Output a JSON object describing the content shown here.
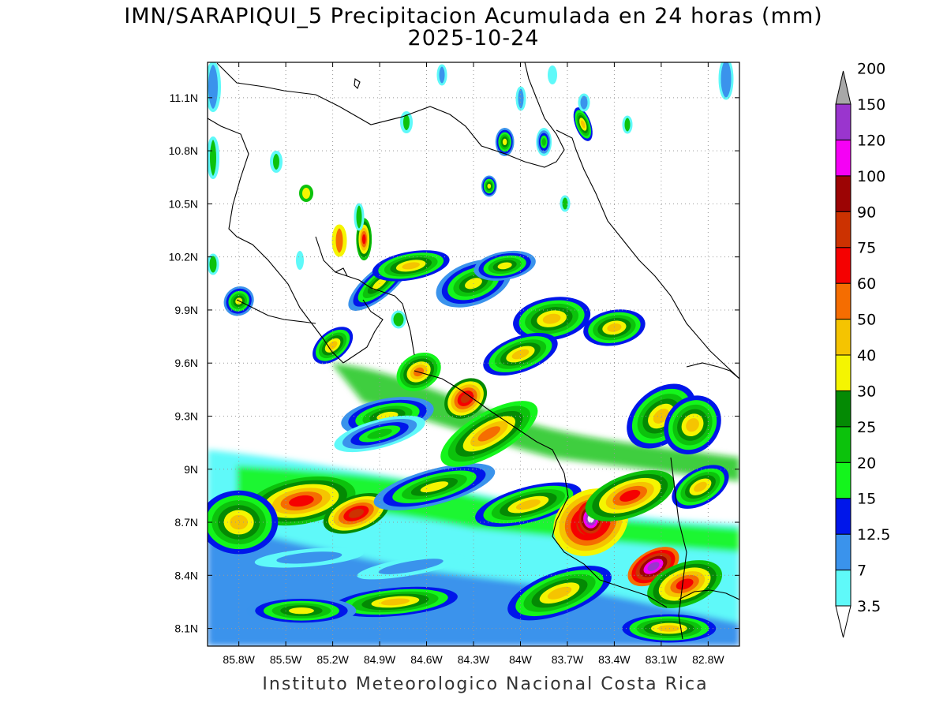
{
  "title_line1": "IMN/SARAPIQUI_5 Precipitacion Acumulada en 24 horas (mm)",
  "title_line2": "2025-10-24",
  "footer": "Instituto Meteorologico Nacional Costa Rica",
  "map": {
    "lon_range": [
      -86.0,
      -82.6
    ],
    "lat_range": [
      8.0,
      11.3
    ],
    "lon_ticks": [
      {
        "value": -85.8,
        "label": "85.8W"
      },
      {
        "value": -85.5,
        "label": "85.5W"
      },
      {
        "value": -85.2,
        "label": "85.2W"
      },
      {
        "value": -84.9,
        "label": "84.9W"
      },
      {
        "value": -84.6,
        "label": "84.6W"
      },
      {
        "value": -84.3,
        "label": "84.3W"
      },
      {
        "value": -84.0,
        "label": "84W"
      },
      {
        "value": -83.7,
        "label": "83.7W"
      },
      {
        "value": -83.4,
        "label": "83.4W"
      },
      {
        "value": -83.1,
        "label": "83.1W"
      },
      {
        "value": -82.8,
        "label": "82.8W"
      }
    ],
    "lat_ticks": [
      {
        "value": 11.1,
        "label": "11.1N"
      },
      {
        "value": 10.8,
        "label": "10.8N"
      },
      {
        "value": 10.5,
        "label": "10.5N"
      },
      {
        "value": 10.2,
        "label": "10.2N"
      },
      {
        "value": 9.9,
        "label": "9.9N"
      },
      {
        "value": 9.6,
        "label": "9.6N"
      },
      {
        "value": 9.3,
        "label": "9.3N"
      },
      {
        "value": 9.0,
        "label": "9N"
      },
      {
        "value": 8.7,
        "label": "8.7N"
      },
      {
        "value": 8.4,
        "label": "8.4N"
      },
      {
        "value": 8.1,
        "label": "8.1N"
      }
    ],
    "grid": "dotted"
  },
  "colorbar": {
    "labels": [
      "3.5",
      "7",
      "12.5",
      "15",
      "20",
      "25",
      "30",
      "40",
      "50",
      "60",
      "75",
      "90",
      "100",
      "120",
      "150",
      "200"
    ],
    "colors": [
      "#5ff9f9",
      "#3a93ec",
      "#0016ea",
      "#14f51c",
      "#0cc20c",
      "#048a04",
      "#f5f501",
      "#f5c401",
      "#f56d01",
      "#f50101",
      "#cc3201",
      "#9c0404",
      "#f501f5",
      "#9a35ce",
      "#f4f4f4",
      "#a8a8a8"
    ]
  },
  "precip_cells": [
    {
      "lon": -85.4,
      "lat": 8.82,
      "rx": 0.35,
      "ry": 0.13,
      "rot": -10,
      "mm": 60
    },
    {
      "lon": -85.05,
      "lat": 8.75,
      "rx": 0.22,
      "ry": 0.1,
      "rot": -20,
      "mm": 75
    },
    {
      "lon": -85.8,
      "lat": 8.7,
      "rx": 0.25,
      "ry": 0.18,
      "rot": 0,
      "mm": 40
    },
    {
      "lon": -84.55,
      "lat": 8.9,
      "rx": 0.4,
      "ry": 0.1,
      "rot": -15,
      "mm": 30
    },
    {
      "lon": -84.2,
      "lat": 9.2,
      "rx": 0.35,
      "ry": 0.12,
      "rot": -30,
      "mm": 50
    },
    {
      "lon": -84.35,
      "lat": 9.4,
      "rx": 0.15,
      "ry": 0.1,
      "rot": -40,
      "mm": 75
    },
    {
      "lon": -84.85,
      "lat": 9.3,
      "rx": 0.3,
      "ry": 0.1,
      "rot": -10,
      "mm": 30
    },
    {
      "lon": -83.95,
      "lat": 8.8,
      "rx": 0.35,
      "ry": 0.1,
      "rot": -15,
      "mm": 40
    },
    {
      "lon": -83.55,
      "lat": 8.7,
      "rx": 0.25,
      "ry": 0.18,
      "rot": -30,
      "mm": 90
    },
    {
      "lon": -83.55,
      "lat": 8.72,
      "rx": 0.09,
      "ry": 0.1,
      "rot": 0,
      "mm": 150
    },
    {
      "lon": -83.15,
      "lat": 8.45,
      "rx": 0.18,
      "ry": 0.09,
      "rot": -30,
      "mm": 120
    },
    {
      "lon": -82.95,
      "lat": 8.35,
      "rx": 0.25,
      "ry": 0.12,
      "rot": -20,
      "mm": 60
    },
    {
      "lon": -83.3,
      "lat": 8.85,
      "rx": 0.3,
      "ry": 0.12,
      "rot": -20,
      "mm": 60
    },
    {
      "lon": -82.85,
      "lat": 8.9,
      "rx": 0.2,
      "ry": 0.1,
      "rot": -30,
      "mm": 40
    },
    {
      "lon": -84.8,
      "lat": 8.25,
      "rx": 0.4,
      "ry": 0.08,
      "rot": -5,
      "mm": 40
    },
    {
      "lon": -85.4,
      "lat": 8.2,
      "rx": 0.35,
      "ry": 0.08,
      "rot": 0,
      "mm": 30
    },
    {
      "lon": -83.75,
      "lat": 8.3,
      "rx": 0.35,
      "ry": 0.12,
      "rot": -20,
      "mm": 40
    },
    {
      "lon": -83.05,
      "lat": 8.1,
      "rx": 0.3,
      "ry": 0.08,
      "rot": 0,
      "mm": 40
    },
    {
      "lon": -83.8,
      "lat": 9.85,
      "rx": 0.25,
      "ry": 0.12,
      "rot": -10,
      "mm": 40
    },
    {
      "lon": -83.4,
      "lat": 9.8,
      "rx": 0.2,
      "ry": 0.1,
      "rot": -10,
      "mm": 40
    },
    {
      "lon": -83.1,
      "lat": 9.3,
      "rx": 0.25,
      "ry": 0.15,
      "rot": -40,
      "mm": 40
    },
    {
      "lon": -82.9,
      "lat": 9.25,
      "rx": 0.2,
      "ry": 0.15,
      "rot": -50,
      "mm": 40
    },
    {
      "lon": -84.3,
      "lat": 10.05,
      "rx": 0.25,
      "ry": 0.12,
      "rot": -20,
      "mm": 30
    },
    {
      "lon": -84.1,
      "lat": 10.15,
      "rx": 0.2,
      "ry": 0.08,
      "rot": -10,
      "mm": 30
    },
    {
      "lon": -84.0,
      "lat": 9.65,
      "rx": 0.25,
      "ry": 0.1,
      "rot": -20,
      "mm": 40
    },
    {
      "lon": -84.9,
      "lat": 10.05,
      "rx": 0.25,
      "ry": 0.08,
      "rot": -40,
      "mm": 30
    },
    {
      "lon": -85.2,
      "lat": 9.7,
      "rx": 0.15,
      "ry": 0.08,
      "rot": -40,
      "mm": 40
    },
    {
      "lon": -85.8,
      "lat": 9.95,
      "rx": 0.1,
      "ry": 0.08,
      "rot": -40,
      "mm": 30
    },
    {
      "lon": -85.0,
      "lat": 10.3,
      "rx": 0.05,
      "ry": 0.12,
      "rot": 0,
      "mm": 60
    },
    {
      "lon": -84.7,
      "lat": 10.15,
      "rx": 0.25,
      "ry": 0.08,
      "rot": -10,
      "mm": 40
    },
    {
      "lon": -84.65,
      "lat": 9.55,
      "rx": 0.15,
      "ry": 0.1,
      "rot": -30,
      "mm": 50
    },
    {
      "lon": -83.6,
      "lat": 10.95,
      "rx": 0.05,
      "ry": 0.1,
      "rot": -20,
      "mm": 40
    },
    {
      "lon": -84.1,
      "lat": 10.85,
      "rx": 0.06,
      "ry": 0.08,
      "rot": 0,
      "mm": 30
    },
    {
      "lon": -84.2,
      "lat": 10.6,
      "rx": 0.05,
      "ry": 0.06,
      "rot": 0,
      "mm": 30
    },
    {
      "lon": -83.85,
      "lat": 10.85,
      "rx": 0.05,
      "ry": 0.08,
      "rot": 0,
      "mm": 20
    },
    {
      "lon": -84.9,
      "lat": 9.2,
      "rx": 0.3,
      "ry": 0.08,
      "rot": -15,
      "mm": 20
    },
    {
      "lon": -85.35,
      "lat": 8.5,
      "rx": 0.35,
      "ry": 0.05,
      "rot": -5,
      "mm": 7
    },
    {
      "lon": -84.7,
      "lat": 8.45,
      "rx": 0.35,
      "ry": 0.05,
      "rot": -10,
      "mm": 7
    }
  ]
}
